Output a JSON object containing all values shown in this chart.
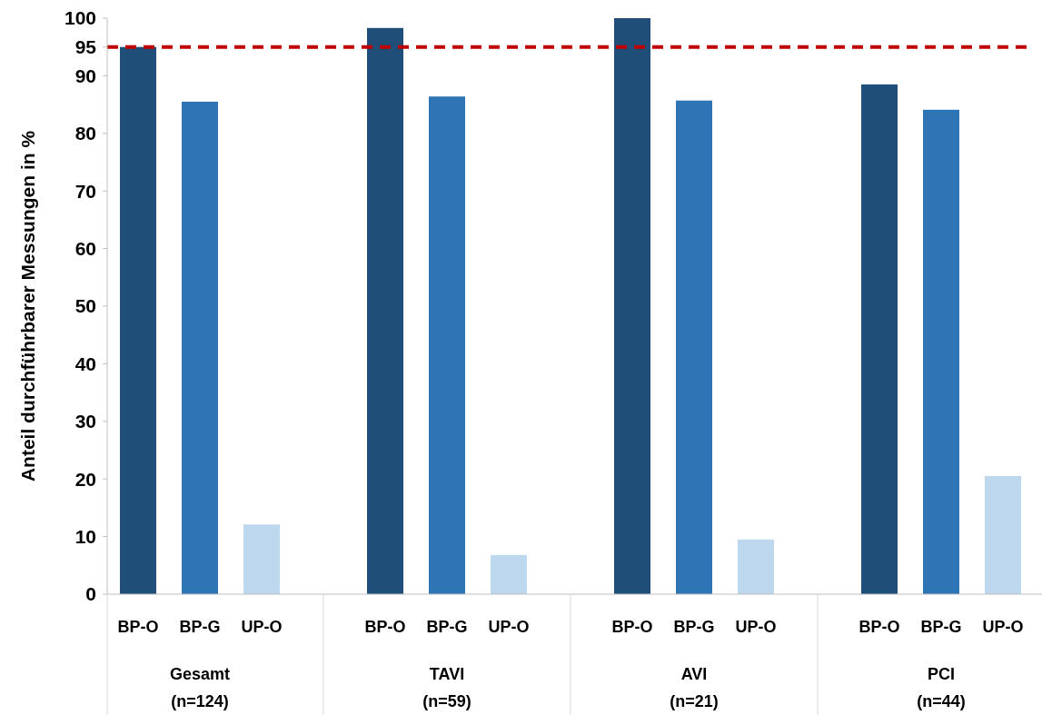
{
  "chart_data": {
    "type": "bar",
    "ylabel": "Anteil durchführbarer Messungen in %",
    "categories": [
      "Gesamt\n(n=124)",
      "TAVI\n(n=59)",
      "AVI\n(n=21)",
      "PCI\n(n=44)"
    ],
    "series": [
      {
        "name": "BP-O",
        "color": "#1f4e79",
        "values": [
          95,
          98.3,
          100,
          88.5
        ]
      },
      {
        "name": "BP-G",
        "color": "#2e75b6",
        "values": [
          85.5,
          86.4,
          85.7,
          84.1
        ]
      },
      {
        "name": "UP-O",
        "color": "#bdd7ee",
        "values": [
          12.1,
          6.8,
          9.5,
          20.5
        ]
      }
    ],
    "ylim": [
      0,
      100
    ],
    "yticks": [
      0,
      10,
      20,
      30,
      40,
      50,
      60,
      70,
      80,
      90,
      95,
      100
    ],
    "ref_lines": [
      {
        "axis": "y",
        "value": 95,
        "color": "#c00000",
        "line_style": "dashed"
      }
    ],
    "grid": false,
    "legend": false
  }
}
